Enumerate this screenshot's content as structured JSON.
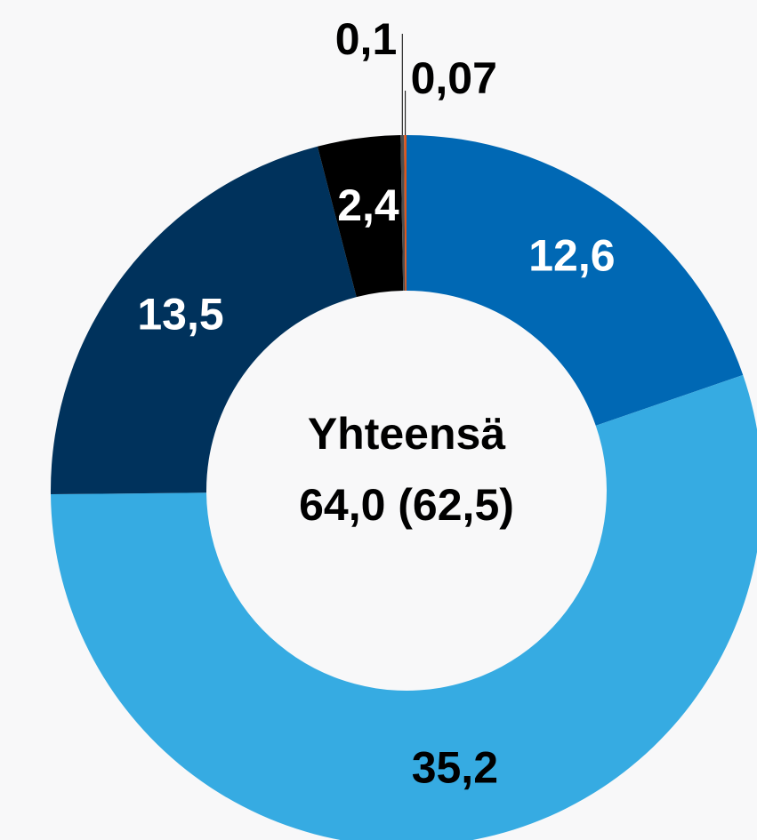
{
  "chart_data": {
    "type": "donut",
    "values": [
      12.6,
      35.2,
      13.5,
      2.4,
      0.1,
      0.07
    ],
    "value_labels": [
      "12,6",
      "35,2",
      "13,5",
      "2,4",
      "0,1",
      "0,07"
    ],
    "colors": [
      "#0068b4",
      "#36abe2",
      "#00325c",
      "#000000",
      "#4d4d4d",
      "#e0561c"
    ],
    "label_colors": [
      "#ffffff",
      "#000000",
      "#ffffff",
      "#ffffff",
      "#000000",
      "#000000"
    ],
    "center_title": "Yhteensä",
    "center_value": "64,0 (62,5)"
  }
}
